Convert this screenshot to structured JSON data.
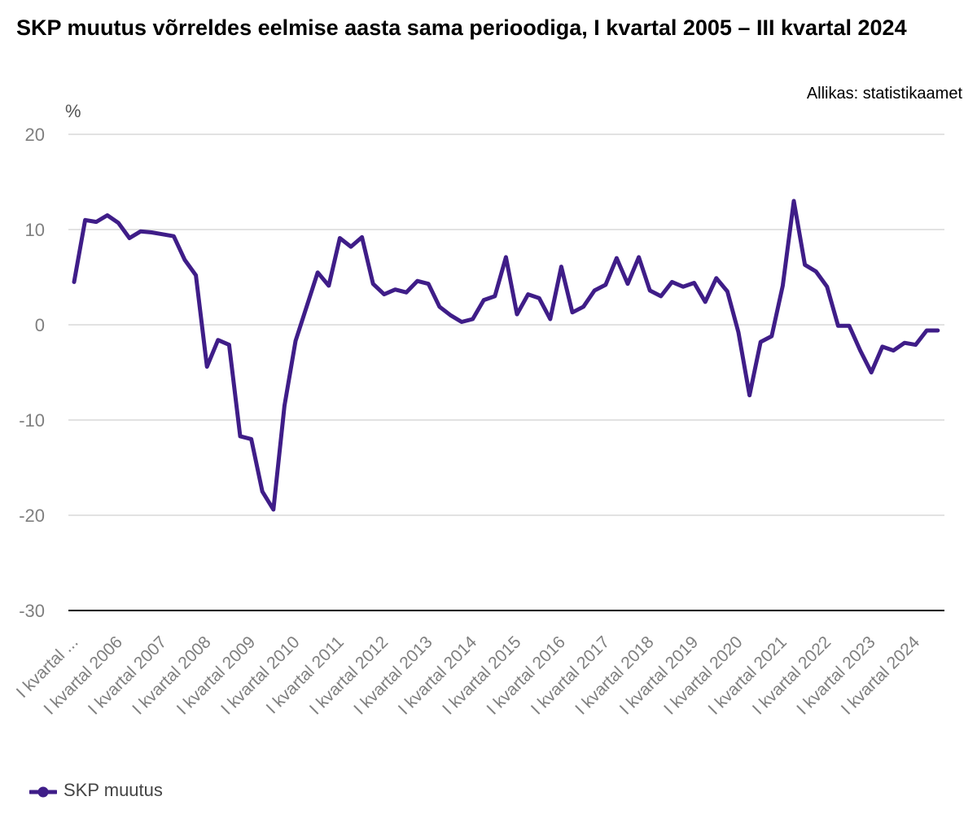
{
  "title": "SKP muutus võrreldes eelmise aasta sama perioodiga, I kvartal 2005 – III kvartal 2024",
  "source": "Allikas: statistikaamet",
  "colors": {
    "series": "#3f1d88",
    "grid": "#d9d9d9",
    "axis": "#000000",
    "tick_text": "#7f7f7f"
  },
  "chart_data": {
    "type": "line",
    "title": "SKP muutus võrreldes eelmise aasta sama perioodiga, I kvartal 2005 – III kvartal 2024",
    "ylabel": "%",
    "xlabel": "",
    "ylim": [
      -30,
      20
    ],
    "yticks": [
      20,
      10,
      0,
      -10,
      -20,
      -30
    ],
    "grid": true,
    "legend_position": "bottom-left",
    "x_tick_labels": [
      "I kvartal ...",
      "I kvartal 2006",
      "I kvartal 2007",
      "I kvartal 2008",
      "I kvartal 2009",
      "I kvartal 2010",
      "I kvartal 2011",
      "I kvartal 2012",
      "I kvartal 2013",
      "I kvartal 2014",
      "I kvartal 2015",
      "I kvartal 2016",
      "I kvartal 2017",
      "I kvartal 2018",
      "I kvartal 2019",
      "I kvartal 2020",
      "I kvartal 2021",
      "I kvartal 2022",
      "I kvartal 2023",
      "I kvartal 2024"
    ],
    "series": [
      {
        "name": "SKP muutus",
        "values": [
          4.5,
          11.0,
          10.8,
          11.5,
          10.7,
          9.1,
          9.8,
          9.7,
          9.5,
          9.3,
          6.8,
          5.2,
          -4.4,
          -1.6,
          -2.1,
          -11.7,
          -12.0,
          -17.5,
          -19.4,
          -8.5,
          -1.7,
          1.9,
          5.5,
          4.1,
          9.1,
          8.2,
          9.2,
          4.3,
          3.2,
          3.7,
          3.4,
          4.6,
          4.3,
          1.9,
          1.0,
          0.3,
          0.6,
          2.6,
          3.0,
          7.1,
          1.1,
          3.2,
          2.8,
          0.6,
          6.1,
          1.3,
          1.9,
          3.6,
          4.2,
          7.0,
          4.3,
          7.1,
          3.6,
          3.0,
          4.5,
          4.0,
          4.4,
          2.4,
          4.9,
          3.5,
          -0.8,
          -7.4,
          -1.8,
          -1.2,
          4.1,
          13.0,
          6.3,
          5.6,
          4.0,
          -0.1,
          -0.1,
          -2.7,
          -5.0,
          -2.3,
          -2.7,
          -1.9,
          -2.1,
          -0.6,
          -0.6
        ]
      }
    ]
  }
}
